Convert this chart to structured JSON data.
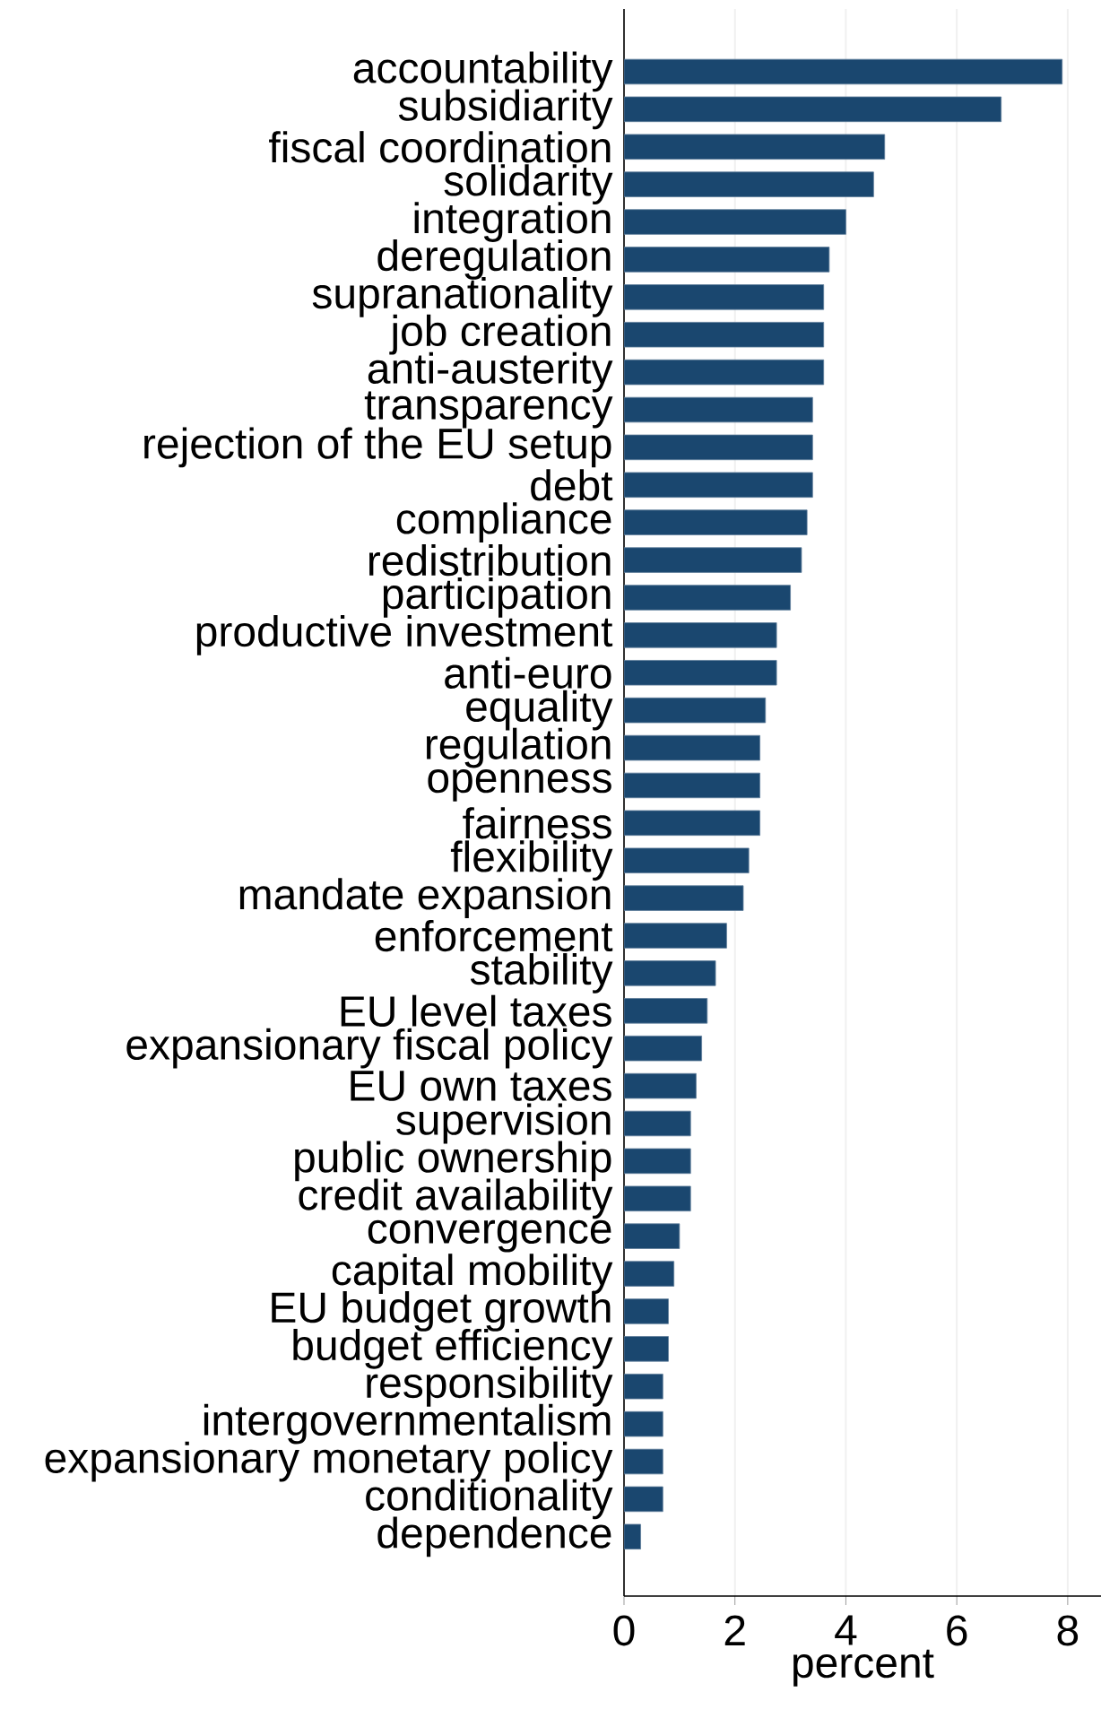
{
  "chart_data": {
    "type": "bar",
    "orientation": "horizontal",
    "categories": [
      "accountability",
      "subsidiarity",
      "fiscal coordination",
      "solidarity",
      "integration",
      "deregulation",
      "supranationality",
      "job creation",
      "anti-austerity",
      "transparency",
      "rejection of the EU setup",
      "debt",
      "compliance",
      "redistribution",
      "participation",
      "productive investment",
      "anti-euro",
      "equality",
      "regulation",
      "openness",
      "fairness",
      "flexibility",
      "mandate expansion",
      "enforcement",
      "stability",
      "EU level taxes",
      "expansionary fiscal policy",
      "EU own taxes",
      "supervision",
      "public ownership",
      "credit availability",
      "convergence",
      "capital mobility",
      "EU budget growth",
      "budget efficiency",
      "responsibility",
      "intergovernmentalism",
      "expansionary monetary policy",
      "conditionality",
      "dependence"
    ],
    "values": [
      7.9,
      6.8,
      4.7,
      4.5,
      4.0,
      3.7,
      3.6,
      3.6,
      3.6,
      3.4,
      3.4,
      3.4,
      3.3,
      3.2,
      3.0,
      2.75,
      2.75,
      2.55,
      2.45,
      2.45,
      2.45,
      2.25,
      2.15,
      1.85,
      1.65,
      1.5,
      1.4,
      1.3,
      1.2,
      1.2,
      1.2,
      1.0,
      0.9,
      0.8,
      0.8,
      0.7,
      0.7,
      0.7,
      0.7,
      0.3
    ],
    "color": "#1a476f",
    "xlabel": "percent",
    "xlim": [
      0,
      8.6
    ],
    "xticks": [
      0,
      2,
      4,
      6,
      8
    ],
    "grid": "x"
  }
}
